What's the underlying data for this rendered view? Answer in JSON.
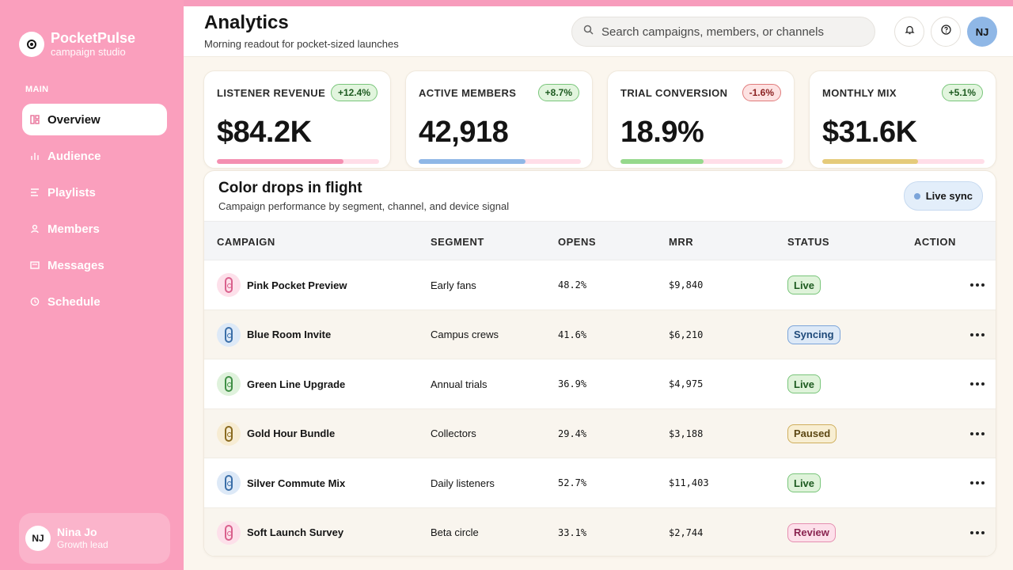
{
  "brand": {
    "name": "PocketPulse",
    "tagline": "campaign studio"
  },
  "sidebar": {
    "heading": "MAIN",
    "items": [
      {
        "label": "Overview",
        "icon": "overview-icon",
        "active": true
      },
      {
        "label": "Audience",
        "icon": "audience-icon"
      },
      {
        "label": "Playlists",
        "icon": "playlists-icon"
      },
      {
        "label": "Members",
        "icon": "members-icon"
      },
      {
        "label": "Messages",
        "icon": "messages-icon"
      },
      {
        "label": "Schedule",
        "icon": "schedule-icon"
      }
    ],
    "profile": {
      "initials": "NJ",
      "name": "Nina Jo",
      "role": "Growth lead"
    }
  },
  "header": {
    "title": "Analytics",
    "subtitle": "Morning readout for pocket-sized launches",
    "search_placeholder": "Search campaigns, members, or channels",
    "avatar_initials": "NJ"
  },
  "kpis": [
    {
      "label": "LISTENER REVENUE",
      "value": "$84.2K",
      "change": "+12.4%",
      "trend": "up",
      "progress": 0.78,
      "color": "#f48fb1"
    },
    {
      "label": "ACTIVE MEMBERS",
      "value": "42,918",
      "change": "+8.7%",
      "trend": "up",
      "progress": 0.66,
      "color": "#8fb7e6"
    },
    {
      "label": "TRIAL CONVERSION",
      "value": "18.9%",
      "change": "-1.6%",
      "trend": "down",
      "progress": 0.51,
      "color": "#96d98c"
    },
    {
      "label": "MONTHLY MIX",
      "value": "$31.6K",
      "change": "+5.1%",
      "trend": "up",
      "progress": 0.59,
      "color": "#e5cb7a"
    }
  ],
  "table": {
    "title": "Color drops in flight",
    "subtitle": "Campaign performance by segment, channel, and device signal",
    "sync_label": "Live sync",
    "columns": [
      "CAMPAIGN",
      "SEGMENT",
      "OPENS",
      "MRR",
      "STATUS",
      "ACTION"
    ],
    "rows": [
      {
        "campaign": "Pink Pocket Preview",
        "segment": "Early fans",
        "opens": "48.2%",
        "mrr": "$9,840",
        "status": "Live",
        "color": "pink"
      },
      {
        "campaign": "Blue Room Invite",
        "segment": "Campus crews",
        "opens": "41.6%",
        "mrr": "$6,210",
        "status": "Syncing",
        "color": "blue"
      },
      {
        "campaign": "Green Line Upgrade",
        "segment": "Annual trials",
        "opens": "36.9%",
        "mrr": "$4,975",
        "status": "Live",
        "color": "green"
      },
      {
        "campaign": "Gold Hour Bundle",
        "segment": "Collectors",
        "opens": "29.4%",
        "mrr": "$3,188",
        "status": "Paused",
        "color": "gold"
      },
      {
        "campaign": "Silver Commute Mix",
        "segment": "Daily listeners",
        "opens": "52.7%",
        "mrr": "$11,403",
        "status": "Live",
        "color": "blue"
      },
      {
        "campaign": "Soft Launch Survey",
        "segment": "Beta circle",
        "opens": "33.1%",
        "mrr": "$2,744",
        "status": "Review",
        "color": "pink"
      }
    ]
  }
}
